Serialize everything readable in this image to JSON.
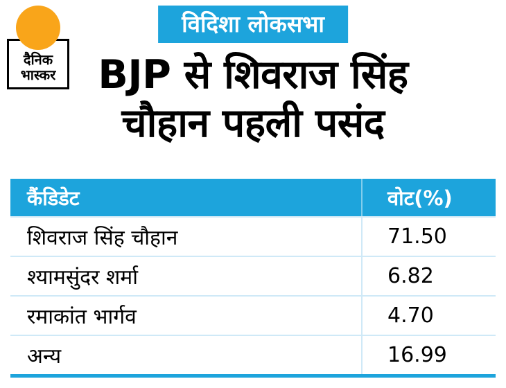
{
  "logo": {
    "line1": "दैनिक",
    "line2": "भास्कर"
  },
  "badge": {
    "text": "विदिशा लोकसभा"
  },
  "headline": {
    "line1": "BJP से शिवराज सिंह",
    "line2": "चौहान पहली पसंद"
  },
  "table": {
    "headers": [
      "कैंडिडेट",
      "वोट(%)"
    ],
    "rows": [
      {
        "candidate": "शिवराज सिंह चौहान",
        "vote": "71.50"
      },
      {
        "candidate": "श्यामसुंदर शर्मा",
        "vote": "6.82"
      },
      {
        "candidate": "रमाकांत भार्गव",
        "vote": "4.70"
      },
      {
        "candidate": "अन्य",
        "vote": "16.99"
      }
    ]
  },
  "colors": {
    "accent_blue": "#1da4dc",
    "logo_orange": "#f9a51a",
    "row_separator": "#cfe9f7",
    "text_black": "#000000",
    "background": "#ffffff"
  },
  "chart_data": {
    "type": "table",
    "title": "BJP से शिवराज सिंह चौहान पहली पसंद",
    "subtitle": "विदिशा लोकसभा",
    "columns": [
      "कैंडिडेट",
      "वोट(%)"
    ],
    "rows": [
      [
        "शिवराज सिंह चौहान",
        71.5
      ],
      [
        "श्यामसुंदर शर्मा",
        6.82
      ],
      [
        "रमाकांत भार्गव",
        4.7
      ],
      [
        "अन्य",
        16.99
      ]
    ]
  }
}
